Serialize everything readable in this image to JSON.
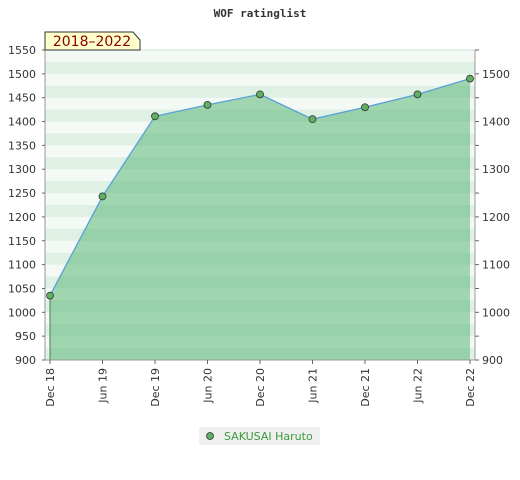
{
  "chart_data": {
    "type": "area",
    "title": "WOF ratinglist",
    "period_label": "2018–2022",
    "xlabel": "",
    "ylabel": "",
    "x": [
      "Dec 18",
      "Jun 19",
      "Dec 19",
      "Jun 20",
      "Dec 20",
      "Jun 21",
      "Dec 21",
      "Jun 22",
      "Dec 22"
    ],
    "ylim": [
      900,
      1550
    ],
    "yticks_left": [
      900,
      950,
      1000,
      1050,
      1100,
      1150,
      1200,
      1250,
      1300,
      1350,
      1400,
      1450,
      1500,
      1550
    ],
    "yticks_right": [
      900,
      1000,
      1100,
      1200,
      1300,
      1400,
      1500
    ],
    "grid": false,
    "legend_position": "bottom-center",
    "series": [
      {
        "name": "SAKUSAI Haruto",
        "values": [
          1035,
          1243,
          1411,
          1435,
          1457,
          1405,
          1430,
          1457,
          1490
        ]
      }
    ],
    "colors": {
      "line": "#5aa0d8",
      "marker": "#5fb060",
      "fill": "#6abf85",
      "legend_text": "#3a9a3a",
      "period_bg": "#ffffcc",
      "period_text": "#880000"
    }
  }
}
